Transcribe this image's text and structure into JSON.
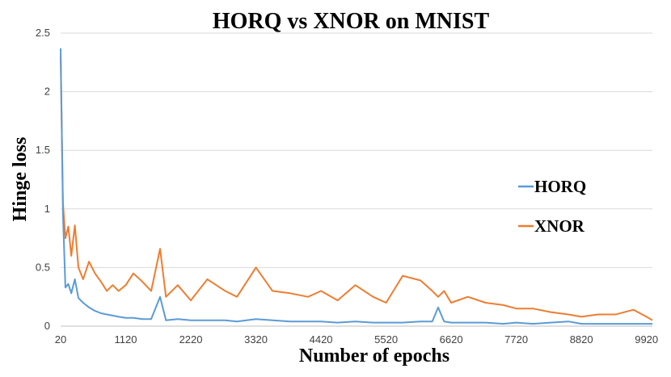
{
  "chart_data": {
    "type": "line",
    "title": "HORQ  vs  XNOR on MNIST",
    "xlabel": "Number of epochs",
    "ylabel": "Hinge loss",
    "ylim": [
      0,
      2.5
    ],
    "yticks": [
      "0",
      "0.5",
      "1",
      "1.5",
      "2",
      "2.5"
    ],
    "xlim": [
      20,
      10020
    ],
    "xticks": [
      20,
      1120,
      2220,
      3320,
      4420,
      5520,
      6620,
      7720,
      8820,
      9920
    ],
    "xtick_labels": [
      "20",
      "1120",
      "2220",
      "3320",
      "4420",
      "5520",
      "6620",
      "7720",
      "8820",
      "9920"
    ],
    "grid": "horizontal",
    "legend": "right",
    "series": [
      {
        "name": "HORQ",
        "color": "#5b9bd5",
        "x": [
          20,
          60,
          100,
          150,
          200,
          260,
          320,
          400,
          500,
          600,
          700,
          800,
          900,
          1000,
          1120,
          1250,
          1400,
          1550,
          1700,
          1800,
          2000,
          2220,
          2500,
          2800,
          3000,
          3320,
          3600,
          3900,
          4200,
          4420,
          4700,
          5000,
          5300,
          5520,
          5800,
          6100,
          6300,
          6400,
          6500,
          6620,
          6900,
          7200,
          7500,
          7720,
          8000,
          8300,
          8600,
          8820,
          9100,
          9400,
          9700,
          9920,
          10020
        ],
        "y": [
          2.37,
          0.95,
          0.33,
          0.36,
          0.28,
          0.4,
          0.24,
          0.2,
          0.16,
          0.13,
          0.11,
          0.1,
          0.09,
          0.08,
          0.07,
          0.07,
          0.06,
          0.06,
          0.25,
          0.05,
          0.06,
          0.05,
          0.05,
          0.05,
          0.04,
          0.06,
          0.05,
          0.04,
          0.04,
          0.04,
          0.03,
          0.04,
          0.03,
          0.03,
          0.03,
          0.04,
          0.04,
          0.16,
          0.04,
          0.03,
          0.03,
          0.03,
          0.02,
          0.03,
          0.02,
          0.03,
          0.04,
          0.02,
          0.02,
          0.02,
          0.02,
          0.02,
          0.02
        ]
      },
      {
        "name": "XNOR",
        "color": "#ed7d31",
        "x": [
          20,
          60,
          100,
          150,
          200,
          260,
          320,
          400,
          500,
          600,
          700,
          800,
          900,
          1000,
          1120,
          1250,
          1400,
          1550,
          1700,
          1800,
          2000,
          2220,
          2500,
          2800,
          3000,
          3320,
          3600,
          3900,
          4200,
          4420,
          4700,
          5000,
          5300,
          5520,
          5800,
          6100,
          6300,
          6400,
          6500,
          6620,
          6900,
          7200,
          7500,
          7720,
          8000,
          8300,
          8600,
          8820,
          9100,
          9400,
          9700,
          9920,
          10020
        ],
        "y": [
          2.3,
          1.05,
          0.75,
          0.85,
          0.6,
          0.86,
          0.5,
          0.4,
          0.55,
          0.45,
          0.38,
          0.3,
          0.35,
          0.3,
          0.35,
          0.45,
          0.38,
          0.3,
          0.66,
          0.25,
          0.35,
          0.22,
          0.4,
          0.3,
          0.25,
          0.5,
          0.3,
          0.28,
          0.25,
          0.3,
          0.22,
          0.35,
          0.25,
          0.2,
          0.43,
          0.39,
          0.3,
          0.25,
          0.3,
          0.2,
          0.25,
          0.2,
          0.18,
          0.15,
          0.15,
          0.12,
          0.1,
          0.08,
          0.1,
          0.1,
          0.14,
          0.08,
          0.05
        ]
      }
    ]
  }
}
